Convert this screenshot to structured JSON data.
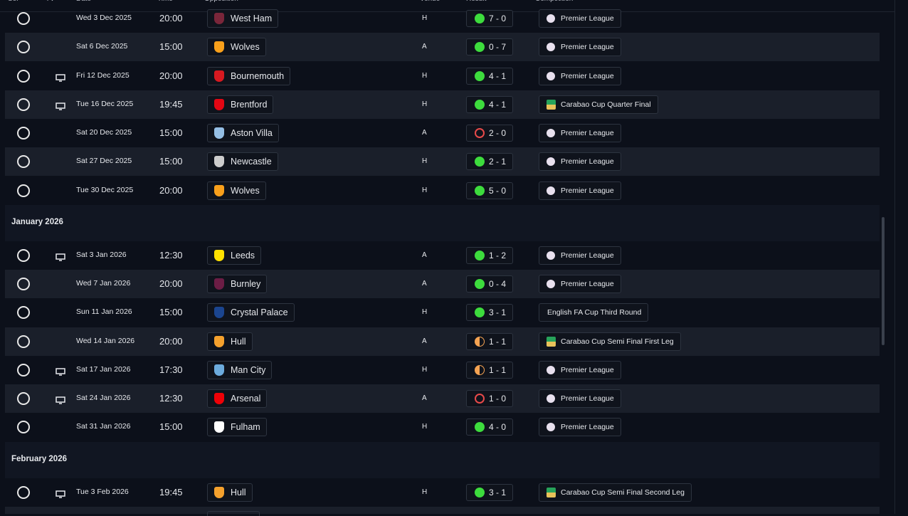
{
  "header": {
    "columns": [
      "Sel",
      "TV",
      "Date",
      "Time",
      "Opposition",
      "Venue",
      "Result",
      "Competition"
    ]
  },
  "sections": [
    {
      "rows": [
        {
          "date": "Wed 3 Dec 2025",
          "time": "20:00",
          "opposition": "West Ham",
          "badge": "#7a263a",
          "venue": "H",
          "result": "7 - 0",
          "competition": "Premier League",
          "tv": false
        },
        {
          "date": "Sat 6 Dec 2025",
          "time": "15:00",
          "opposition": "Wolves",
          "badge": "#f9a01b",
          "venue": "A",
          "result": "0 - 7",
          "competition": "Premier League",
          "tv": false
        },
        {
          "date": "Fri 12 Dec 2025",
          "time": "20:00",
          "opposition": "Bournemouth",
          "badge": "#d71920",
          "venue": "H",
          "result": "4 - 1",
          "competition": "Premier League",
          "tv": true
        },
        {
          "date": "Tue 16 Dec 2025",
          "time": "19:45",
          "opposition": "Brentford",
          "badge": "#e30613",
          "venue": "H",
          "result": "4 - 1",
          "competition": "Carabao Cup Quarter Final",
          "tv": true
        },
        {
          "date": "Sat 20 Dec 2025",
          "time": "15:00",
          "opposition": "Aston Villa",
          "badge": "#95bfe5",
          "venue": "A",
          "result": "2 - 0",
          "competition": "Premier League",
          "tv": false
        },
        {
          "date": "Sat 27 Dec 2025",
          "time": "15:00",
          "opposition": "Newcastle",
          "badge": "#cccccc",
          "venue": "H",
          "result": "2 - 1",
          "competition": "Premier League",
          "tv": false
        },
        {
          "date": "Tue 30 Dec 2025",
          "time": "20:00",
          "opposition": "Wolves",
          "badge": "#f9a01b",
          "venue": "H",
          "result": "5 - 0",
          "competition": "Premier League",
          "tv": false
        }
      ]
    },
    {
      "title": "January 2026",
      "rows": [
        {
          "date": "Sat 3 Jan 2026",
          "time": "12:30",
          "opposition": "Leeds",
          "badge": "#ffe100",
          "venue": "A",
          "result": "1 - 2",
          "competition": "Premier League",
          "tv": true
        },
        {
          "date": "Wed 7 Jan 2026",
          "time": "20:00",
          "opposition": "Burnley",
          "badge": "#6c1d45",
          "venue": "A",
          "result": "0 - 4",
          "competition": "Premier League",
          "tv": false
        },
        {
          "date": "Sun 11 Jan 2026",
          "time": "15:00",
          "opposition": "Crystal Palace",
          "badge": "#1b458f",
          "venue": "H",
          "result": "3 - 1",
          "competition": "English FA Cup Third Round",
          "tv": false
        },
        {
          "date": "Wed 14 Jan 2026",
          "time": "20:00",
          "opposition": "Hull",
          "badge": "#f5a12d",
          "venue": "A",
          "result": "1 - 1",
          "competition": "Carabao Cup Semi Final First Leg",
          "tv": false
        },
        {
          "date": "Sat 17 Jan 2026",
          "time": "17:30",
          "opposition": "Man City",
          "badge": "#6cabdd",
          "venue": "H",
          "result": "1 - 1",
          "competition": "Premier League",
          "tv": true
        },
        {
          "date": "Sat 24 Jan 2026",
          "time": "12:30",
          "opposition": "Arsenal",
          "badge": "#ef0107",
          "venue": "A",
          "result": "1 - 0",
          "competition": "Premier League",
          "tv": true
        },
        {
          "date": "Sat 31 Jan 2026",
          "time": "15:00",
          "opposition": "Fulham",
          "badge": "#ffffff",
          "venue": "H",
          "result": "4 - 0",
          "competition": "Premier League",
          "tv": false
        }
      ]
    },
    {
      "title": "February 2026",
      "rows": [
        {
          "date": "Tue 3 Feb 2026",
          "time": "19:45",
          "opposition": "Hull",
          "badge": "#f5a12d",
          "venue": "H",
          "result": "3 - 1",
          "competition": "Carabao Cup Semi Final Second Leg",
          "tv": true
        }
      ]
    }
  ]
}
